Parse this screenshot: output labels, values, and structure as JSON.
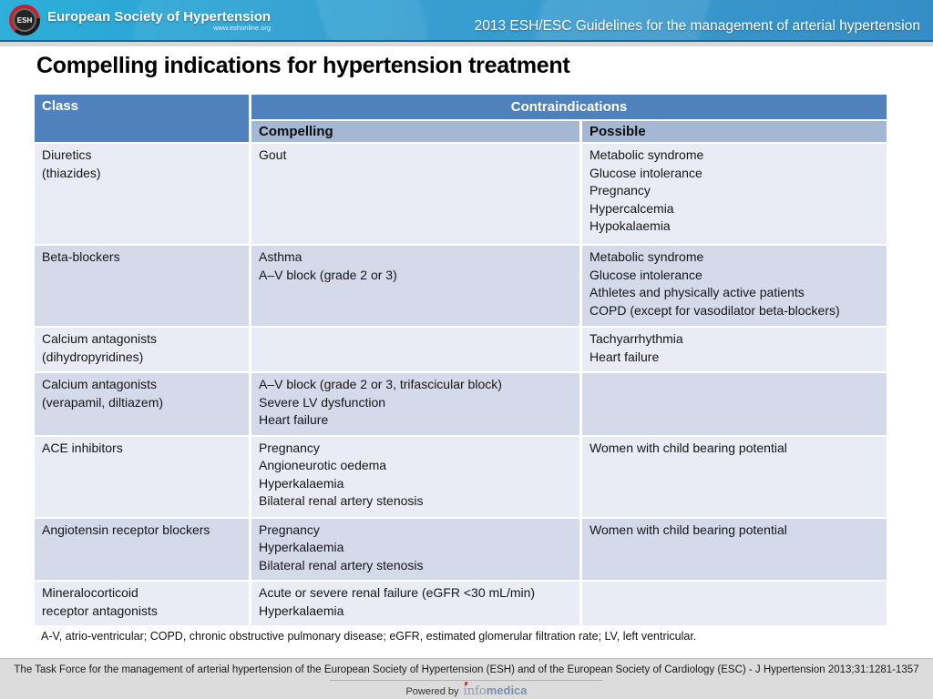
{
  "header": {
    "logo_badge": "ESH",
    "logo_text": "European Society of Hypertension",
    "logo_sub": "www.eshonline.org",
    "title": "2013 ESH/ESC Guidelines for the management of arterial hypertension"
  },
  "page_title": "Compelling indications for hypertension treatment",
  "table": {
    "col_class": "Class",
    "col_contra": "Contraindications",
    "col_compelling": "Compelling",
    "col_possible": "Possible",
    "rows": [
      {
        "class": [
          "Diuretics",
          "(thiazides)"
        ],
        "compelling": [
          "Gout"
        ],
        "possible": [
          "Metabolic syndrome",
          "Glucose intolerance",
          "Pregnancy",
          "Hypercalcemia",
          "Hypokalaemia"
        ]
      },
      {
        "class": [
          "Beta-blockers"
        ],
        "compelling": [
          "Asthma",
          "A–V block (grade 2 or 3)"
        ],
        "possible": [
          "Metabolic syndrome",
          "Glucose intolerance",
          "Athletes and physically active patients",
          "COPD (except for vasodilator beta-blockers)"
        ]
      },
      {
        "class": [
          "Calcium antagonists",
          "(dihydropyridines)"
        ],
        "compelling": [],
        "possible": [
          "Tachyarrhythmia",
          "Heart failure"
        ]
      },
      {
        "class": [
          "Calcium antagonists",
          "(verapamil, diltiazem)"
        ],
        "compelling": [
          "A–V block (grade 2 or 3, trifascicular block)",
          "Severe LV dysfunction",
          "Heart failure"
        ],
        "possible": []
      },
      {
        "class": [
          "ACE inhibitors"
        ],
        "compelling": [
          "Pregnancy",
          "Angioneurotic oedema",
          "Hyperkalaemia",
          "Bilateral renal artery stenosis"
        ],
        "possible": [
          "Women with child bearing potential"
        ]
      },
      {
        "class": [
          "Angiotensin receptor blockers"
        ],
        "compelling": [
          "Pregnancy",
          "Hyperkalaemia",
          "Bilateral renal artery stenosis"
        ],
        "possible": [
          "Women with child bearing potential"
        ]
      },
      {
        "class": [
          "Mineralocorticoid",
          "receptor antagonists"
        ],
        "compelling": [
          "Acute or severe renal failure (eGFR <30 mL/min)",
          "Hyperkalaemia"
        ],
        "possible": []
      }
    ]
  },
  "footnote": "A-V, atrio-ventricular; COPD, chronic obstructive pulmonary disease; eGFR, estimated glomerular filtration rate; LV, left ventricular.",
  "footer": {
    "citation": "The Task Force for the management of arterial hypertension of the European Society of Hypertension (ESH) and of the European Society of Cardiology (ESC) - J Hypertension 2013;31:1281-1357",
    "powered_by": "Powered by",
    "brand_info": "info",
    "brand_medica": "medica"
  },
  "colors": {
    "banner_blue_left": "#2fafd9",
    "banner_blue_right": "#1e80c0",
    "table_header_blue": "#4f81bd",
    "table_subheader_blue": "#a4b8d5",
    "row_light": "#e9ebf5",
    "row_dark": "#d5daeb",
    "footer_gray": "#dcdcdc",
    "logo_red": "#c5202e",
    "brand_blue": "#7b90ad"
  }
}
